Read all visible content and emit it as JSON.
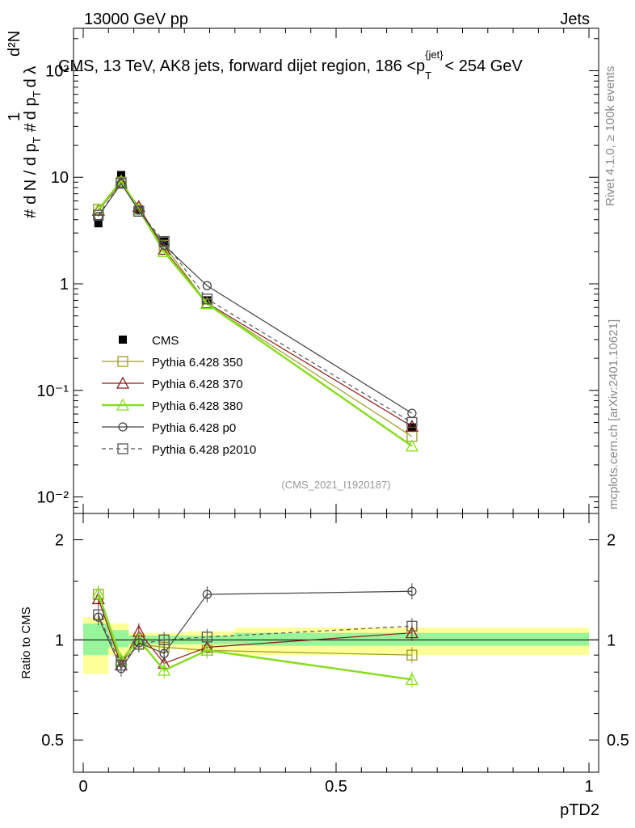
{
  "header": {
    "left": "13000 GeV pp",
    "right": "Jets",
    "title_main": "CMS, 13 TeV, AK8 jets, forward dijet region, 186 <p",
    "title_sub": "T",
    "title_sup": "{jet}",
    "title_tail": "< 254 GeV",
    "analysis": "(CMS_2021_I1920187)"
  },
  "side": {
    "rivet": "Rivet 4.1.0, ≥ 100k events",
    "mcplots": "mcplots.cern.ch [arXiv:2401.10621]"
  },
  "ylabel_main": "1 / dN/dpT · d²N/(dpT dλ)",
  "colors": {
    "cms": "#000000",
    "p350": "#9a9a2a",
    "p370": "#8b1a1a",
    "p380": "#88dd22",
    "p0": "#444444",
    "p2010": "#555555",
    "band_inner": "#99f599",
    "band_outer": "#ffff99"
  },
  "chart_data": [
    {
      "type": "line",
      "scale": "log",
      "xlim": [
        0,
        1
      ],
      "ylim": [
        0.007,
        250
      ],
      "ytick_labels": [
        "10⁻²",
        "10⁻¹",
        "1",
        "10",
        "10²"
      ],
      "x": [
        0.03,
        0.075,
        0.11,
        0.16,
        0.245,
        0.65
      ],
      "series": [
        {
          "name": "CMS",
          "marker": "square-filled",
          "values": [
            3.7,
            10.5,
            5.0,
            2.5,
            0.7,
            0.045
          ]
        },
        {
          "name": "Pythia 6.428 350",
          "marker": "square-open",
          "values": [
            5.0,
            9.0,
            4.8,
            2.3,
            0.65,
            0.037
          ]
        },
        {
          "name": "Pythia 6.428 370",
          "marker": "triangle-open",
          "values": [
            4.9,
            8.8,
            5.3,
            2.1,
            0.66,
            0.046
          ]
        },
        {
          "name": "Pythia 6.428 380",
          "marker": "triangle-open",
          "values": [
            5.0,
            9.2,
            5.0,
            2.0,
            0.65,
            0.03
          ]
        },
        {
          "name": "Pythia 6.428 p0",
          "marker": "circle-open",
          "values": [
            4.3,
            8.7,
            4.9,
            2.3,
            0.96,
            0.061
          ]
        },
        {
          "name": "Pythia 6.428 p2010",
          "marker": "square-open-dashed",
          "values": [
            4.4,
            8.8,
            4.8,
            2.5,
            0.72,
            0.05
          ]
        }
      ]
    },
    {
      "type": "line",
      "title": "Ratio to CMS",
      "xlabel": "pTD2",
      "xlim": [
        0,
        1
      ],
      "ylim": [
        0.4,
        2.4
      ],
      "ytick_labels": [
        "0.5",
        "1",
        "2"
      ],
      "xtick_labels": [
        "0",
        "0.5",
        "1"
      ],
      "x": [
        0.03,
        0.075,
        0.11,
        0.16,
        0.245,
        0.65
      ],
      "band_edges": [
        0,
        0.05,
        0.09,
        0.13,
        0.2,
        0.3,
        1.0
      ],
      "band_inner": [
        [
          0.9,
          1.12
        ],
        [
          0.95,
          1.07
        ],
        [
          0.97,
          1.03
        ],
        [
          0.97,
          1.03
        ],
        [
          0.97,
          1.03
        ],
        [
          0.96,
          1.05
        ]
      ],
      "band_outer": [
        [
          0.79,
          1.17
        ],
        [
          0.9,
          1.12
        ],
        [
          0.94,
          1.05
        ],
        [
          0.94,
          1.05
        ],
        [
          0.92,
          1.06
        ],
        [
          0.9,
          1.09
        ]
      ],
      "series": [
        {
          "name": "Pythia 6.428 350",
          "values": [
            1.37,
            0.86,
            0.97,
            0.95,
            0.93,
            0.9
          ]
        },
        {
          "name": "Pythia 6.428 370",
          "values": [
            1.33,
            0.84,
            1.06,
            0.85,
            0.95,
            1.05
          ]
        },
        {
          "name": "Pythia 6.428 380",
          "values": [
            1.38,
            0.87,
            1.0,
            0.81,
            0.93,
            0.76
          ]
        },
        {
          "name": "Pythia 6.428 p0",
          "values": [
            1.17,
            0.82,
            0.98,
            0.91,
            1.37,
            1.4
          ]
        },
        {
          "name": "Pythia 6.428 p2010",
          "values": [
            1.19,
            0.84,
            0.97,
            1.0,
            1.02,
            1.1
          ]
        }
      ]
    }
  ]
}
